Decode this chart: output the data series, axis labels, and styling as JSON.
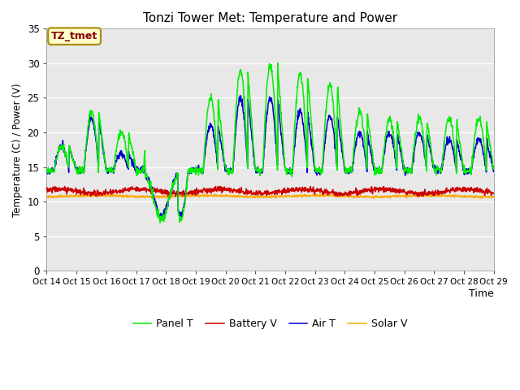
{
  "title": "Tonzi Tower Met: Temperature and Power",
  "xlabel": "Time",
  "ylabel": "Temperature (C) / Power (V)",
  "ylim": [
    0,
    35
  ],
  "yticks": [
    0,
    5,
    10,
    15,
    20,
    25,
    30,
    35
  ],
  "annotation_text": "TZ_tmet",
  "legend_labels": [
    "Panel T",
    "Battery V",
    "Air T",
    "Solar V"
  ],
  "line_colors": [
    "#00ee00",
    "#cc0000",
    "#0000cc",
    "#ffaa00"
  ],
  "background_color": "#e8e8e8",
  "figure_color": "#ffffff",
  "x_start": 14.0,
  "x_end": 29.0,
  "xtick_positions": [
    14,
    15,
    16,
    17,
    18,
    19,
    20,
    21,
    22,
    23,
    24,
    25,
    26,
    27,
    28,
    29
  ],
  "xtick_labels": [
    "Oct 14",
    "Oct 15",
    "Oct 16",
    "Oct 17",
    "Oct 18",
    "Oct 19",
    "Oct 20",
    "Oct 21",
    "Oct 22",
    "Oct 23",
    "Oct 24",
    "Oct 25",
    "Oct 26",
    "Oct 27",
    "Oct 28",
    "Oct 29"
  ]
}
